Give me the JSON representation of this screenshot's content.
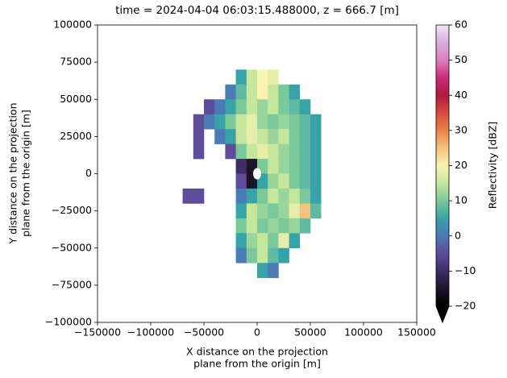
{
  "chart_data": {
    "type": "heatmap",
    "title": "time = 2024-04-04 06:03:15.488000, z = 666.7 [m]",
    "xlabel": [
      "X distance on the projection",
      "plane from the origin [m]"
    ],
    "ylabel": [
      "Y distance on the projection",
      "plane from the origin [m]"
    ],
    "colorbar_label": "Reflectivity [dBZ]",
    "xlim": [
      -150000,
      150000
    ],
    "ylim": [
      -100000,
      100000
    ],
    "xticks": [
      {
        "value": -150000,
        "label": "−150000"
      },
      {
        "value": -100000,
        "label": "−100000"
      },
      {
        "value": -50000,
        "label": "−50000"
      },
      0,
      50000,
      100000,
      150000
    ],
    "yticks": [
      {
        "value": -100000,
        "label": "−100000"
      },
      {
        "value": -75000,
        "label": "−75000"
      },
      {
        "value": -50000,
        "label": "−50000"
      },
      {
        "value": -25000,
        "label": "−25000"
      },
      0,
      25000,
      50000,
      75000,
      100000
    ],
    "clim": [
      -20,
      60
    ],
    "cticks": [
      {
        "value": -20,
        "label": "−20"
      },
      {
        "value": -10,
        "label": "−10"
      },
      0,
      10,
      20,
      30,
      40,
      50,
      60
    ],
    "colormap": [
      "#000000",
      "#1d1429",
      "#3d2f66",
      "#5e4b9a",
      "#4a7bb7",
      "#35a3a8",
      "#79c99a",
      "#c6e79b",
      "#f8f3b0",
      "#f6c27a",
      "#ec8149",
      "#d94a3c",
      "#b3183f",
      "#cc2a7d",
      "#e07cbd",
      "#d6aedc",
      "#f1e7f5"
    ],
    "x": [
      -65000,
      -55000,
      -45000,
      -35000,
      -25000,
      -15000,
      -5000,
      5000,
      15000,
      25000,
      35000,
      45000,
      55000,
      65000
    ],
    "y": [
      65000,
      55000,
      45000,
      35000,
      25000,
      15000,
      5000,
      -5000,
      -15000,
      -25000,
      -35000,
      -45000,
      -55000,
      -65000
    ],
    "cell": 10000,
    "values": [
      [
        null,
        null,
        null,
        null,
        null,
        5,
        15,
        20,
        18,
        null,
        null,
        null,
        null,
        null
      ],
      [
        null,
        null,
        null,
        null,
        0,
        8,
        15,
        20,
        15,
        10,
        5,
        null,
        null,
        null
      ],
      [
        null,
        null,
        -5,
        0,
        5,
        10,
        15,
        12,
        15,
        10,
        8,
        5,
        null,
        null
      ],
      [
        null,
        -5,
        0,
        5,
        10,
        15,
        18,
        12,
        10,
        12,
        10,
        8,
        5,
        null
      ],
      [
        null,
        -5,
        null,
        0,
        5,
        15,
        18,
        15,
        12,
        15,
        10,
        8,
        5,
        null
      ],
      [
        null,
        -5,
        null,
        null,
        -5,
        10,
        15,
        18,
        15,
        12,
        10,
        8,
        5,
        null
      ],
      [
        null,
        null,
        null,
        null,
        null,
        -10,
        -15,
        10,
        15,
        12,
        10,
        8,
        5,
        null
      ],
      [
        null,
        null,
        null,
        null,
        null,
        -5,
        -15,
        5,
        12,
        15,
        10,
        8,
        5,
        null
      ],
      [
        -5,
        -5,
        null,
        null,
        null,
        0,
        5,
        10,
        15,
        12,
        15,
        10,
        5,
        null
      ],
      [
        null,
        null,
        null,
        null,
        null,
        5,
        15,
        12,
        10,
        12,
        18,
        25,
        8,
        null
      ],
      [
        null,
        null,
        null,
        null,
        null,
        10,
        15,
        10,
        12,
        10,
        12,
        8,
        null,
        null
      ],
      [
        null,
        null,
        null,
        null,
        null,
        5,
        12,
        15,
        10,
        18,
        5,
        null,
        null,
        null
      ],
      [
        null,
        null,
        null,
        null,
        null,
        0,
        10,
        15,
        8,
        5,
        null,
        null,
        null,
        null
      ],
      [
        null,
        null,
        null,
        null,
        null,
        null,
        null,
        5,
        0,
        null,
        null,
        null,
        null,
        null
      ]
    ]
  }
}
